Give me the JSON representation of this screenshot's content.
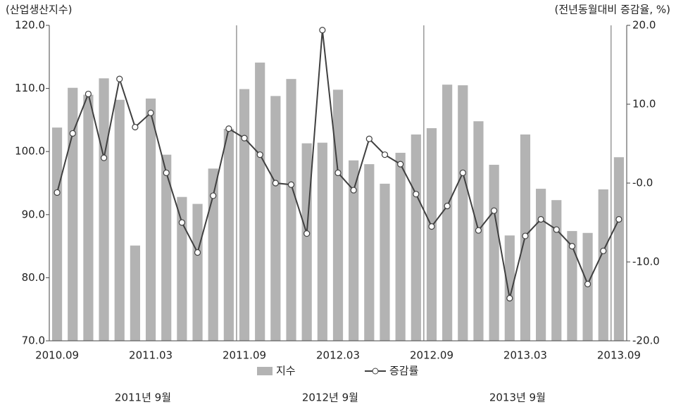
{
  "chart_data": {
    "type": "bar-line",
    "y_label": "(산업생산지수)",
    "y2_label": "(전년동월대비 증감율, %)",
    "categories": [
      "2010.09",
      null,
      null,
      null,
      null,
      null,
      "2011.03",
      null,
      null,
      null,
      null,
      null,
      "2011.09",
      null,
      null,
      null,
      null,
      null,
      "2012.03",
      null,
      null,
      null,
      null,
      null,
      "2012.09",
      null,
      null,
      null,
      null,
      null,
      "2013.03",
      null,
      null,
      null,
      null,
      null,
      "2013.09"
    ],
    "series": [
      {
        "name": "지수",
        "type": "bar",
        "color": "#b3b3b3",
        "values": [
          103.8,
          110.1,
          109.0,
          111.6,
          108.2,
          85.1,
          108.4,
          99.5,
          92.8,
          91.7,
          97.3,
          103.6,
          109.9,
          114.1,
          108.8,
          111.5,
          101.3,
          101.4,
          109.8,
          98.6,
          98.0,
          94.9,
          99.8,
          102.7,
          103.7,
          110.6,
          110.5,
          104.8,
          97.9,
          86.7,
          102.7,
          94.1,
          92.3,
          87.4,
          87.1,
          94.0,
          99.1
        ]
      },
      {
        "name": "증감률",
        "type": "line",
        "axis": "y2",
        "color": "#404040",
        "values": [
          -1.2,
          6.3,
          11.3,
          3.2,
          13.2,
          7.1,
          8.9,
          1.3,
          -5.0,
          -8.8,
          -1.6,
          6.9,
          5.7,
          3.6,
          0.0,
          -0.2,
          -6.4,
          19.4,
          1.3,
          -0.9,
          5.6,
          3.6,
          2.4,
          -1.4,
          -5.5,
          -2.9,
          1.3,
          -6.0,
          -3.5,
          -14.6,
          -6.7,
          -4.6,
          -5.9,
          -8.0,
          -12.8,
          -8.6,
          -4.6
        ]
      }
    ],
    "ylim": [
      70,
      120
    ],
    "yticks": [
      {
        "value": 70,
        "label": "70.0"
      },
      {
        "value": 80,
        "label": "80.0"
      },
      {
        "value": 90,
        "label": "90.0"
      },
      {
        "value": 100,
        "label": "100.0"
      },
      {
        "value": 110,
        "label": "110.0"
      },
      {
        "value": 120,
        "label": "120.0"
      }
    ],
    "y2lim": [
      -20,
      20
    ],
    "y2ticks": [
      {
        "value": -20,
        "label": "-20.0"
      },
      {
        "value": -10,
        "label": "-10.0"
      },
      {
        "value": 0,
        "label": "-0.0"
      },
      {
        "value": 10,
        "label": "10.0"
      },
      {
        "value": 20,
        "label": "20.0"
      }
    ],
    "section_labels": [
      "2011년 9월",
      "2012년 9월",
      "2013년 9월"
    ]
  }
}
